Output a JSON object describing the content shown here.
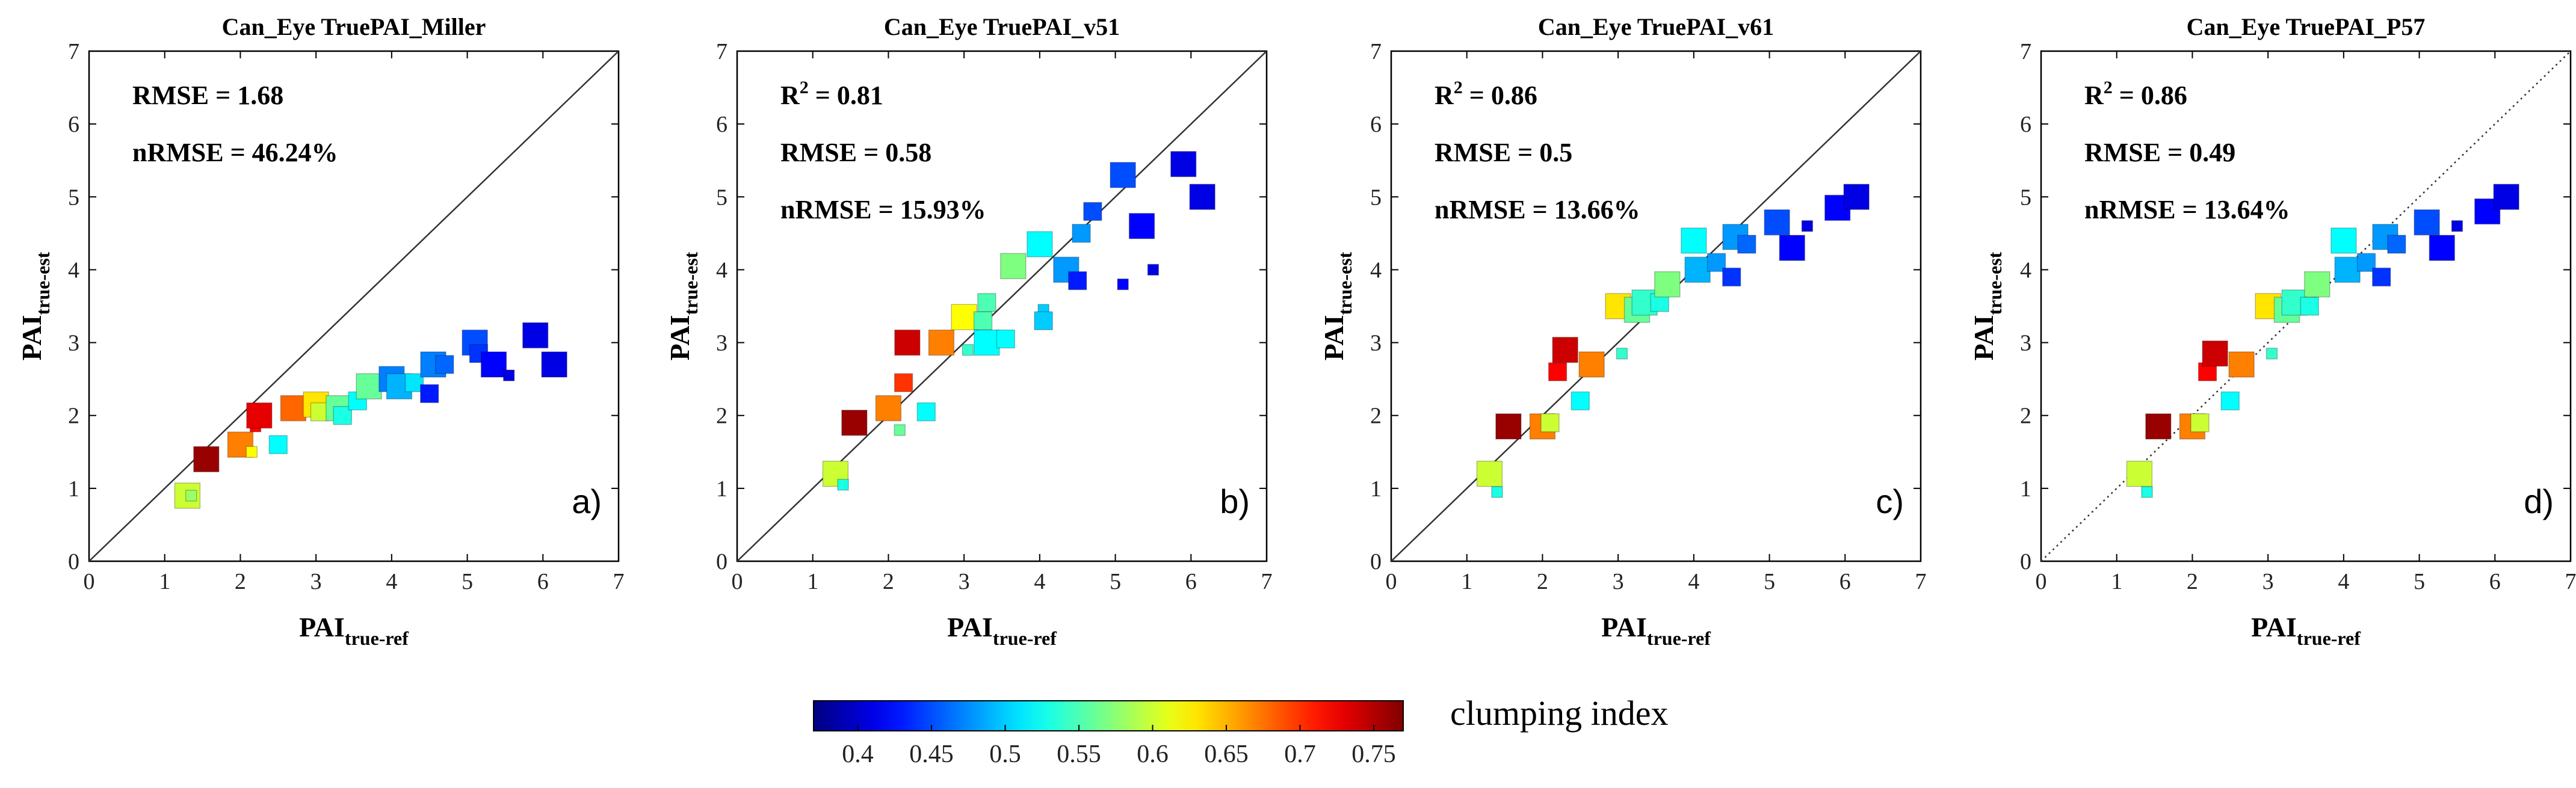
{
  "colorbar": {
    "label": "clumping index",
    "min": 0.37,
    "max": 0.77,
    "ticks": [
      0.4,
      0.45,
      0.5,
      0.55,
      0.6,
      0.65,
      0.7,
      0.75
    ],
    "tick_labels": [
      "0.4",
      "0.45",
      "0.5",
      "0.55",
      "0.6",
      "0.65",
      "0.7",
      "0.75"
    ],
    "colormap": "jet"
  },
  "chart_data": [
    {
      "type": "scatter",
      "title": "Can_Eye TruePAI_Miller",
      "xlabel_main": "PAI",
      "xlabel_sub": "true-ref",
      "ylabel_main": "PAI",
      "ylabel_sub": "true-est",
      "xlim": [
        0,
        7
      ],
      "ylim": [
        0,
        7
      ],
      "xticks": [
        0,
        1,
        2,
        3,
        4,
        5,
        6,
        7
      ],
      "yticks": [
        0,
        1,
        2,
        3,
        4,
        5,
        6,
        7
      ],
      "reference_line": "solid",
      "panel_label": "a)",
      "stats": [
        {
          "main": "RMSE = 1.68"
        },
        {
          "main": "nRMSE = 46.24%"
        }
      ],
      "points": [
        {
          "x": 1.3,
          "y": 0.9,
          "ci": 0.6,
          "s": "L"
        },
        {
          "x": 1.35,
          "y": 0.9,
          "ci": 0.58,
          "s": "S"
        },
        {
          "x": 1.55,
          "y": 1.4,
          "ci": 0.76,
          "s": "L"
        },
        {
          "x": 2.0,
          "y": 1.6,
          "ci": 0.67,
          "s": "L"
        },
        {
          "x": 2.15,
          "y": 1.5,
          "ci": 0.62,
          "s": "S"
        },
        {
          "x": 2.2,
          "y": 1.85,
          "ci": 0.72,
          "s": "S"
        },
        {
          "x": 2.25,
          "y": 2.0,
          "ci": 0.73,
          "s": "L"
        },
        {
          "x": 2.5,
          "y": 1.6,
          "ci": 0.52,
          "s": "M"
        },
        {
          "x": 2.7,
          "y": 2.1,
          "ci": 0.68,
          "s": "L"
        },
        {
          "x": 3.0,
          "y": 2.15,
          "ci": 0.63,
          "s": "L"
        },
        {
          "x": 3.05,
          "y": 2.05,
          "ci": 0.6,
          "s": "M"
        },
        {
          "x": 3.3,
          "y": 2.1,
          "ci": 0.56,
          "s": "L"
        },
        {
          "x": 3.35,
          "y": 2.0,
          "ci": 0.53,
          "s": "M"
        },
        {
          "x": 3.55,
          "y": 2.2,
          "ci": 0.52,
          "s": "M"
        },
        {
          "x": 3.7,
          "y": 2.4,
          "ci": 0.56,
          "s": "L"
        },
        {
          "x": 4.0,
          "y": 2.5,
          "ci": 0.47,
          "s": "L"
        },
        {
          "x": 4.1,
          "y": 2.4,
          "ci": 0.49,
          "s": "L"
        },
        {
          "x": 4.3,
          "y": 2.45,
          "ci": 0.51,
          "s": "M"
        },
        {
          "x": 4.5,
          "y": 2.3,
          "ci": 0.43,
          "s": "M"
        },
        {
          "x": 4.55,
          "y": 2.7,
          "ci": 0.47,
          "s": "L"
        },
        {
          "x": 4.7,
          "y": 2.7,
          "ci": 0.46,
          "s": "M"
        },
        {
          "x": 5.1,
          "y": 3.0,
          "ci": 0.45,
          "s": "L"
        },
        {
          "x": 5.15,
          "y": 2.85,
          "ci": 0.44,
          "s": "M"
        },
        {
          "x": 5.35,
          "y": 2.7,
          "ci": 0.42,
          "s": "L"
        },
        {
          "x": 5.55,
          "y": 2.55,
          "ci": 0.41,
          "s": "S"
        },
        {
          "x": 5.9,
          "y": 3.1,
          "ci": 0.41,
          "s": "L"
        },
        {
          "x": 6.15,
          "y": 2.7,
          "ci": 0.41,
          "s": "L"
        }
      ]
    },
    {
      "type": "scatter",
      "title": "Can_Eye TruePAI_v51",
      "xlabel_main": "PAI",
      "xlabel_sub": "true-ref",
      "ylabel_main": "PAI",
      "ylabel_sub": "true-est",
      "xlim": [
        0,
        7
      ],
      "ylim": [
        0,
        7
      ],
      "xticks": [
        0,
        1,
        2,
        3,
        4,
        5,
        6,
        7
      ],
      "yticks": [
        0,
        1,
        2,
        3,
        4,
        5,
        6,
        7
      ],
      "reference_line": "solid",
      "panel_label": "b)",
      "stats": [
        {
          "main": "R",
          "sup": "2",
          "rest": " = 0.81"
        },
        {
          "main": "RMSE = 0.58"
        },
        {
          "main": "nRMSE = 15.93%"
        }
      ],
      "points": [
        {
          "x": 1.3,
          "y": 1.2,
          "ci": 0.6,
          "s": "L"
        },
        {
          "x": 1.4,
          "y": 1.05,
          "ci": 0.53,
          "s": "S"
        },
        {
          "x": 1.55,
          "y": 1.9,
          "ci": 0.76,
          "s": "L"
        },
        {
          "x": 2.0,
          "y": 2.1,
          "ci": 0.67,
          "s": "L"
        },
        {
          "x": 2.15,
          "y": 1.8,
          "ci": 0.56,
          "s": "S"
        },
        {
          "x": 2.2,
          "y": 2.45,
          "ci": 0.7,
          "s": "M"
        },
        {
          "x": 2.25,
          "y": 3.0,
          "ci": 0.74,
          "s": "L"
        },
        {
          "x": 2.5,
          "y": 2.05,
          "ci": 0.52,
          "s": "M"
        },
        {
          "x": 2.7,
          "y": 3.0,
          "ci": 0.67,
          "s": "L"
        },
        {
          "x": 3.0,
          "y": 3.35,
          "ci": 0.62,
          "s": "L"
        },
        {
          "x": 3.05,
          "y": 2.9,
          "ci": 0.54,
          "s": "S"
        },
        {
          "x": 3.25,
          "y": 3.3,
          "ci": 0.55,
          "s": "M"
        },
        {
          "x": 3.3,
          "y": 3.55,
          "ci": 0.55,
          "s": "M"
        },
        {
          "x": 3.3,
          "y": 3.0,
          "ci": 0.52,
          "s": "L"
        },
        {
          "x": 3.55,
          "y": 3.05,
          "ci": 0.52,
          "s": "M"
        },
        {
          "x": 3.65,
          "y": 4.05,
          "ci": 0.57,
          "s": "L"
        },
        {
          "x": 4.0,
          "y": 4.35,
          "ci": 0.52,
          "s": "L"
        },
        {
          "x": 4.05,
          "y": 3.45,
          "ci": 0.5,
          "s": "S"
        },
        {
          "x": 4.05,
          "y": 3.3,
          "ci": 0.5,
          "s": "M"
        },
        {
          "x": 4.35,
          "y": 4.0,
          "ci": 0.48,
          "s": "L"
        },
        {
          "x": 4.55,
          "y": 4.5,
          "ci": 0.48,
          "s": "M"
        },
        {
          "x": 4.5,
          "y": 3.85,
          "ci": 0.43,
          "s": "M"
        },
        {
          "x": 4.7,
          "y": 4.8,
          "ci": 0.45,
          "s": "M"
        },
        {
          "x": 5.1,
          "y": 5.3,
          "ci": 0.45,
          "s": "L"
        },
        {
          "x": 5.1,
          "y": 3.8,
          "ci": 0.42,
          "s": "S"
        },
        {
          "x": 5.35,
          "y": 4.6,
          "ci": 0.42,
          "s": "L"
        },
        {
          "x": 5.5,
          "y": 4.0,
          "ci": 0.41,
          "s": "S"
        },
        {
          "x": 5.9,
          "y": 5.45,
          "ci": 0.41,
          "s": "L"
        },
        {
          "x": 6.15,
          "y": 5.0,
          "ci": 0.41,
          "s": "L"
        }
      ]
    },
    {
      "type": "scatter",
      "title": "Can_Eye TruePAI_v61",
      "xlabel_main": "PAI",
      "xlabel_sub": "true-ref",
      "ylabel_main": "PAI",
      "ylabel_sub": "true-est",
      "xlim": [
        0,
        7
      ],
      "ylim": [
        0,
        7
      ],
      "xticks": [
        0,
        1,
        2,
        3,
        4,
        5,
        6,
        7
      ],
      "yticks": [
        0,
        1,
        2,
        3,
        4,
        5,
        6,
        7
      ],
      "reference_line": "solid",
      "panel_label": "c)",
      "stats": [
        {
          "main": "R",
          "sup": "2",
          "rest": " = 0.86"
        },
        {
          "main": "RMSE = 0.5"
        },
        {
          "main": "nRMSE = 13.66%"
        }
      ],
      "points": [
        {
          "x": 1.3,
          "y": 1.2,
          "ci": 0.6,
          "s": "L"
        },
        {
          "x": 1.4,
          "y": 0.95,
          "ci": 0.53,
          "s": "S"
        },
        {
          "x": 1.55,
          "y": 1.85,
          "ci": 0.76,
          "s": "L"
        },
        {
          "x": 2.0,
          "y": 1.85,
          "ci": 0.67,
          "s": "L"
        },
        {
          "x": 2.1,
          "y": 1.9,
          "ci": 0.6,
          "s": "M"
        },
        {
          "x": 2.2,
          "y": 2.6,
          "ci": 0.72,
          "s": "M"
        },
        {
          "x": 2.3,
          "y": 2.9,
          "ci": 0.74,
          "s": "L"
        },
        {
          "x": 2.5,
          "y": 2.2,
          "ci": 0.52,
          "s": "M"
        },
        {
          "x": 2.65,
          "y": 2.7,
          "ci": 0.67,
          "s": "L"
        },
        {
          "x": 3.0,
          "y": 3.5,
          "ci": 0.63,
          "s": "L"
        },
        {
          "x": 3.05,
          "y": 2.85,
          "ci": 0.54,
          "s": "S"
        },
        {
          "x": 3.25,
          "y": 3.45,
          "ci": 0.56,
          "s": "L"
        },
        {
          "x": 3.35,
          "y": 3.55,
          "ci": 0.54,
          "s": "L"
        },
        {
          "x": 3.55,
          "y": 3.55,
          "ci": 0.53,
          "s": "M"
        },
        {
          "x": 3.65,
          "y": 3.8,
          "ci": 0.57,
          "s": "L"
        },
        {
          "x": 4.0,
          "y": 4.4,
          "ci": 0.52,
          "s": "L"
        },
        {
          "x": 4.05,
          "y": 4.0,
          "ci": 0.49,
          "s": "L"
        },
        {
          "x": 4.3,
          "y": 4.1,
          "ci": 0.48,
          "s": "M"
        },
        {
          "x": 4.5,
          "y": 3.9,
          "ci": 0.44,
          "s": "M"
        },
        {
          "x": 4.55,
          "y": 4.45,
          "ci": 0.48,
          "s": "L"
        },
        {
          "x": 4.7,
          "y": 4.35,
          "ci": 0.46,
          "s": "M"
        },
        {
          "x": 5.1,
          "y": 4.65,
          "ci": 0.45,
          "s": "L"
        },
        {
          "x": 5.3,
          "y": 4.3,
          "ci": 0.42,
          "s": "L"
        },
        {
          "x": 5.5,
          "y": 4.6,
          "ci": 0.41,
          "s": "S"
        },
        {
          "x": 5.9,
          "y": 4.85,
          "ci": 0.42,
          "s": "L"
        },
        {
          "x": 6.15,
          "y": 5.0,
          "ci": 0.41,
          "s": "L"
        }
      ]
    },
    {
      "type": "scatter",
      "title": "Can_Eye TruePAI_P57",
      "xlabel_main": "PAI",
      "xlabel_sub": "true-ref",
      "ylabel_main": "PAI",
      "ylabel_sub": "true-est",
      "xlim": [
        0,
        7
      ],
      "ylim": [
        0,
        7
      ],
      "xticks": [
        0,
        1,
        2,
        3,
        4,
        5,
        6,
        7
      ],
      "yticks": [
        0,
        1,
        2,
        3,
        4,
        5,
        6,
        7
      ],
      "reference_line": "dotted",
      "panel_label": "d)",
      "stats": [
        {
          "main": "R",
          "sup": "2",
          "rest": " = 0.86"
        },
        {
          "main": "RMSE = 0.49"
        },
        {
          "main": "nRMSE = 13.64%"
        }
      ],
      "points": [
        {
          "x": 1.3,
          "y": 1.2,
          "ci": 0.6,
          "s": "L"
        },
        {
          "x": 1.4,
          "y": 0.95,
          "ci": 0.53,
          "s": "S"
        },
        {
          "x": 1.55,
          "y": 1.85,
          "ci": 0.76,
          "s": "L"
        },
        {
          "x": 2.0,
          "y": 1.85,
          "ci": 0.67,
          "s": "L"
        },
        {
          "x": 2.1,
          "y": 1.9,
          "ci": 0.6,
          "s": "M"
        },
        {
          "x": 2.2,
          "y": 2.6,
          "ci": 0.72,
          "s": "M"
        },
        {
          "x": 2.3,
          "y": 2.85,
          "ci": 0.74,
          "s": "L"
        },
        {
          "x": 2.5,
          "y": 2.2,
          "ci": 0.52,
          "s": "M"
        },
        {
          "x": 2.65,
          "y": 2.7,
          "ci": 0.67,
          "s": "L"
        },
        {
          "x": 3.0,
          "y": 3.5,
          "ci": 0.63,
          "s": "L"
        },
        {
          "x": 3.05,
          "y": 2.85,
          "ci": 0.54,
          "s": "S"
        },
        {
          "x": 3.25,
          "y": 3.45,
          "ci": 0.56,
          "s": "L"
        },
        {
          "x": 3.35,
          "y": 3.55,
          "ci": 0.54,
          "s": "L"
        },
        {
          "x": 3.55,
          "y": 3.5,
          "ci": 0.53,
          "s": "M"
        },
        {
          "x": 3.65,
          "y": 3.8,
          "ci": 0.57,
          "s": "L"
        },
        {
          "x": 4.0,
          "y": 4.4,
          "ci": 0.52,
          "s": "L"
        },
        {
          "x": 4.05,
          "y": 4.0,
          "ci": 0.49,
          "s": "L"
        },
        {
          "x": 4.3,
          "y": 4.1,
          "ci": 0.48,
          "s": "M"
        },
        {
          "x": 4.5,
          "y": 3.9,
          "ci": 0.44,
          "s": "M"
        },
        {
          "x": 4.55,
          "y": 4.45,
          "ci": 0.48,
          "s": "L"
        },
        {
          "x": 4.7,
          "y": 4.35,
          "ci": 0.46,
          "s": "M"
        },
        {
          "x": 5.1,
          "y": 4.65,
          "ci": 0.45,
          "s": "L"
        },
        {
          "x": 5.3,
          "y": 4.3,
          "ci": 0.42,
          "s": "L"
        },
        {
          "x": 5.5,
          "y": 4.6,
          "ci": 0.41,
          "s": "S"
        },
        {
          "x": 5.9,
          "y": 4.8,
          "ci": 0.42,
          "s": "L"
        },
        {
          "x": 6.15,
          "y": 5.0,
          "ci": 0.41,
          "s": "L"
        }
      ]
    }
  ]
}
